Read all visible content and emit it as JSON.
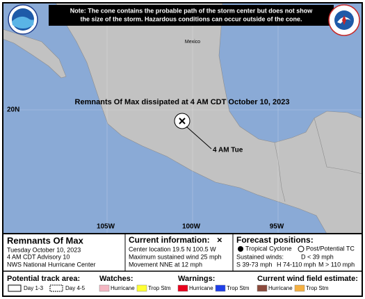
{
  "note": {
    "lines": [
      "Note: The cone contains the probable path of the storm center but does not show",
      "the size of the storm. Hazardous conditions can occur outside of the cone."
    ]
  },
  "map": {
    "country_label": "Mexico",
    "lat_labels": [
      "20N"
    ],
    "lon_labels": [
      "105W",
      "100W",
      "95W"
    ],
    "annotation": "Remnants Of Max dissipated at 4 AM CDT October 10, 2023",
    "position_label": "4 AM Tue"
  },
  "info": {
    "storm_name": "Remnants Of Max",
    "date": "Tuesday October 10, 2023",
    "advisory": "4 AM CDT Advisory 10",
    "center": "NWS National Hurricane Center"
  },
  "current": {
    "title": "Current information:",
    "symbol": "×",
    "lines": [
      "Center location 19.5 N 100.5 W",
      "Maximum sustained wind 25 mph",
      "Movement NNE at 12 mph"
    ]
  },
  "forecast": {
    "title": "Forecast positions:",
    "tropical_cyclone": "Tropical Cyclone",
    "post_tc": "Post/Potential TC",
    "sustained_winds": "Sustained winds:",
    "d": "D < 39 mph",
    "s": "S 39-73 mph",
    "h": "H 74-110 mph",
    "m": "M > 110 mph"
  },
  "legend": {
    "track_title": "Potential track area:",
    "day_1_3": "Day 1-3",
    "day_4_5": "Day 4-5",
    "watches_title": "Watches:",
    "watch_hurricane": "Hurricane",
    "watch_trop_stm": "Trop Stm",
    "warnings_title": "Warnings:",
    "warning_hurricane": "Hurricane",
    "warning_trop_stm": "Trop Stm",
    "wind_title": "Current wind field estimate:",
    "wind_hurricane": "Hurricane",
    "wind_trop_stm": "Trop Stm"
  }
}
